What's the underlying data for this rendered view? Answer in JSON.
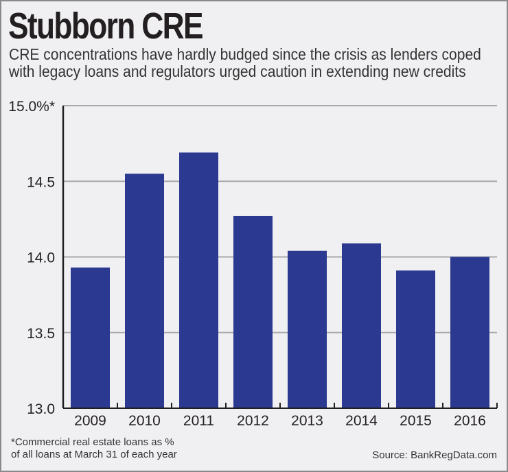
{
  "chart_data": {
    "type": "bar",
    "title": "Stubborn CRE",
    "subtitle": "CRE concentrations have hardly budged since the crisis as lenders coped with legacy loans and regulators urged caution in extending new credits",
    "categories": [
      "2009",
      "2010",
      "2011",
      "2012",
      "2013",
      "2014",
      "2015",
      "2016"
    ],
    "values": [
      13.93,
      14.55,
      14.69,
      14.27,
      14.04,
      14.09,
      13.91,
      14.0
    ],
    "xlabel": "",
    "ylabel": "",
    "ylim": [
      13.0,
      15.0
    ],
    "yticks": [
      13.0,
      13.5,
      14.0,
      14.5,
      15.0
    ],
    "ytick_labels": [
      "13.0",
      "13.5",
      "14.0",
      "14.5",
      "15.0%*"
    ],
    "grid": true,
    "bar_color": "#2b3990",
    "footnote": [
      "*Commercial real estate loans as %",
      "of all loans at March 31 of each year"
    ],
    "source": "Source: BankRegData.com"
  }
}
